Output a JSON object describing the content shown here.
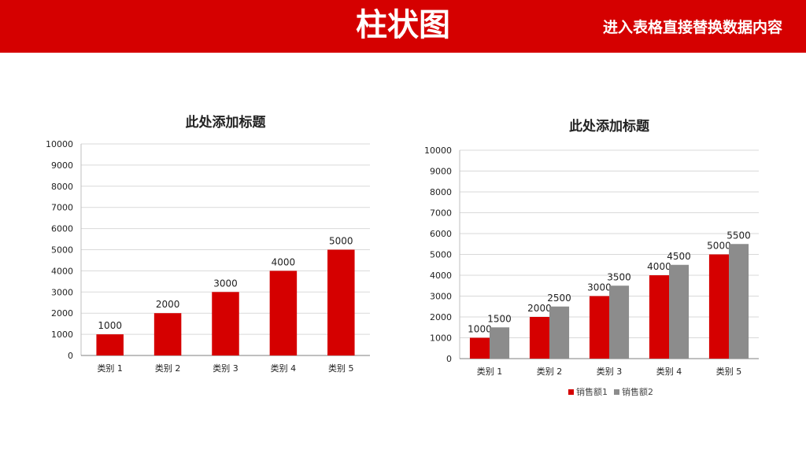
{
  "header": {
    "title": "柱状图",
    "subtitle": "进入表格直接替换数据内容"
  },
  "colors": {
    "banner": "#d50000",
    "series1": "#d50000",
    "series2": "#8c8c8c",
    "grid": "#d9d9d9"
  },
  "chart_data": [
    {
      "type": "bar",
      "title": "此处添加标题",
      "categories": [
        "类别 1",
        "类别 2",
        "类别 3",
        "类别 4",
        "类别 5"
      ],
      "series": [
        {
          "values": [
            1000,
            2000,
            3000,
            4000,
            5000
          ]
        }
      ],
      "ylim": [
        0,
        10000
      ],
      "ytick_step": 1000,
      "grid": true,
      "legend": "none",
      "data_labels": true
    },
    {
      "type": "bar",
      "title": "此处添加标题",
      "categories": [
        "类别 1",
        "类别 2",
        "类别 3",
        "类别 4",
        "类别 5"
      ],
      "series": [
        {
          "name": "销售额1",
          "values": [
            1000,
            2000,
            3000,
            4000,
            5000
          ]
        },
        {
          "name": "销售额2",
          "values": [
            1500,
            2500,
            3500,
            4500,
            5500
          ]
        }
      ],
      "ylim": [
        0,
        10000
      ],
      "ytick_step": 1000,
      "grid": true,
      "legend": "bottom",
      "data_labels": true
    }
  ]
}
